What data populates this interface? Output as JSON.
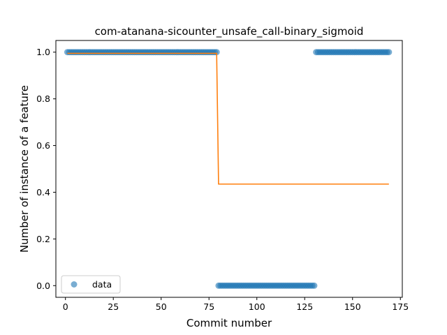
{
  "chart_data": {
    "type": "scatter",
    "title": "com-atanana-sicounter_unsafe_call-binary_sigmoid",
    "xlabel": "Commit number",
    "ylabel": "Number of instance of a feature",
    "xlim": [
      -5,
      176
    ],
    "ylim": [
      -0.05,
      1.05
    ],
    "x_ticks": [
      0,
      25,
      50,
      75,
      100,
      125,
      150,
      175
    ],
    "y_ticks": [
      0.0,
      0.2,
      0.4,
      0.6,
      0.8,
      1.0
    ],
    "x_tick_labels": [
      "0",
      "25",
      "50",
      "75",
      "100",
      "125",
      "150",
      "175"
    ],
    "y_tick_labels": [
      "0.0",
      "0.2",
      "0.4",
      "0.6",
      "0.8",
      "1.0"
    ],
    "grid": false,
    "legend_position": "bottom-left",
    "series": [
      {
        "name": "data",
        "kind": "scatter",
        "color": "#1f77b4",
        "segments": [
          {
            "x_start": 1,
            "x_end": 79,
            "y": 1.0
          },
          {
            "x_start": 80,
            "x_end": 130,
            "y": 0.0
          },
          {
            "x_start": 131,
            "x_end": 169,
            "y": 1.0
          }
        ]
      },
      {
        "kind": "line",
        "color": "#ff7f0e",
        "x": [
          1,
          79,
          80,
          169
        ],
        "y": [
          0.995,
          0.995,
          0.435,
          0.435
        ]
      }
    ]
  }
}
